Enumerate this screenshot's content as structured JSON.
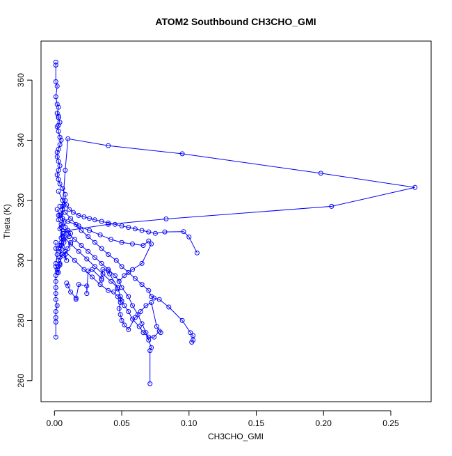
{
  "chart_data": {
    "type": "line",
    "title": "ATOM2 Southbound CH3CHO_GMI",
    "xlabel": "CH3CHO_GMI",
    "ylabel": "Theta (K)",
    "xlim": [
      -0.01,
      0.28
    ],
    "ylim": [
      253,
      373
    ],
    "x_ticks": [
      0.0,
      0.05,
      0.1,
      0.15,
      0.2,
      0.25
    ],
    "x_tick_labels": [
      "0.00",
      "0.05",
      "0.10",
      "0.15",
      "0.20",
      "0.25"
    ],
    "y_ticks": [
      260,
      280,
      300,
      320,
      340,
      360
    ],
    "y_tick_labels": [
      "260",
      "280",
      "300",
      "320",
      "340",
      "360"
    ],
    "grid": false,
    "legend": "none",
    "marker": "open-circle",
    "color": "#0000ff",
    "series": [
      {
        "x": [
          0.001,
          0.001,
          0.001,
          0.002,
          0.001,
          0.002,
          0.003,
          0.002,
          0.003,
          0.003,
          0.004,
          0.003,
          0.002,
          0.003,
          0.004,
          0.005,
          0.004,
          0.003,
          0.002,
          0.002,
          0.003,
          0.004,
          0.003,
          0.002,
          0.003,
          0.004,
          0.006,
          0.008,
          0.008,
          0.007,
          0.006,
          0.005,
          0.006,
          0.007,
          0.008,
          0.01,
          0.012,
          0.011,
          0.008,
          0.007,
          0.005,
          0.004,
          0.003,
          0.004,
          0.005,
          0.004,
          0.003,
          0.004,
          0.003,
          0.002,
          0.003,
          0.004,
          0.005,
          0.006,
          0.008,
          0.01,
          0.04,
          0.095,
          0.198,
          0.268,
          0.206,
          0.083,
          0.04,
          0.01,
          0.007,
          0.006
        ],
        "y": [
          366.0,
          365.0,
          359.5,
          358.0,
          354.5,
          352.0,
          351.0,
          349.0,
          348.0,
          347.5,
          346.0,
          345.0,
          344.5,
          343.0,
          341.0,
          340.0,
          338.5,
          337.0,
          336.0,
          334.5,
          333.0,
          331.5,
          330.0,
          328.5,
          327.0,
          325.5,
          324.0,
          322.0,
          320.0,
          318.5,
          317.0,
          315.5,
          314.0,
          312.5,
          311.0,
          310.0,
          309.0,
          308.0,
          307.5,
          307.0,
          306.0,
          305.0,
          304.0,
          303.0,
          302.0,
          301.0,
          300.0,
          299.0,
          298.0,
          297.0,
          296.0,
          298.5,
          305.0,
          318.0,
          330.0,
          340.5,
          338.2,
          335.5,
          329.0,
          324.3,
          318.0,
          313.8,
          312.0,
          310.0,
          309.0,
          308.0
        ]
      },
      {
        "x": [
          0.001,
          0.001,
          0.002,
          0.001,
          0.001,
          0.002,
          0.001,
          0.001,
          0.001,
          0.001,
          0.001,
          0.002,
          0.001,
          0.001,
          0.001,
          0.001
        ],
        "y": [
          306.0,
          304.0,
          302.0,
          299.0,
          298.0,
          296.0,
          295.0,
          293.0,
          291.0,
          289.0,
          287.0,
          285.0,
          283.0,
          281.0,
          279.5,
          274.5
        ]
      },
      {
        "x": [
          0.003,
          0.006,
          0.009,
          0.011,
          0.014,
          0.018,
          0.022,
          0.026,
          0.03,
          0.035,
          0.04,
          0.045,
          0.05,
          0.055,
          0.06,
          0.065,
          0.07,
          0.075,
          0.082,
          0.096,
          0.1,
          0.106
        ],
        "y": [
          323.0,
          320.0,
          318.5,
          317.0,
          316.0,
          315.0,
          314.5,
          314.0,
          313.5,
          313.0,
          312.5,
          312.0,
          311.5,
          311.0,
          310.5,
          310.0,
          309.5,
          309.0,
          309.5,
          309.6,
          307.8,
          302.5
        ]
      },
      {
        "x": [
          0.004,
          0.008,
          0.012,
          0.016,
          0.02,
          0.025,
          0.03,
          0.035,
          0.04,
          0.046,
          0.05,
          0.055,
          0.06,
          0.065,
          0.07,
          0.072,
          0.074,
          0.078,
          0.085,
          0.095,
          0.101,
          0.103,
          0.103,
          0.102
        ],
        "y": [
          318.0,
          316.0,
          314.0,
          312.0,
          310.0,
          308.0,
          306.0,
          304.0,
          302.0,
          300.0,
          298.0,
          296.0,
          294.0,
          292.0,
          290.0,
          288.0,
          287.5,
          287.0,
          284.5,
          280.0,
          276.0,
          275.0,
          273.5,
          272.8
        ]
      },
      {
        "x": [
          0.005,
          0.01,
          0.015,
          0.02,
          0.025,
          0.03,
          0.035,
          0.04,
          0.045,
          0.048,
          0.05,
          0.055,
          0.058,
          0.062,
          0.065,
          0.068,
          0.07,
          0.072,
          0.071,
          0.071
        ],
        "y": [
          311.0,
          309.0,
          307.0,
          305.0,
          303.0,
          301.0,
          299.0,
          297.0,
          295.0,
          293.0,
          291.0,
          288.0,
          285.0,
          282.0,
          279.0,
          276.0,
          273.5,
          271.0,
          270.0,
          259.0
        ]
      },
      {
        "x": [
          0.006,
          0.012,
          0.018,
          0.024,
          0.03,
          0.036,
          0.042,
          0.047,
          0.049,
          0.049,
          0.048,
          0.049,
          0.05,
          0.052,
          0.055,
          0.06,
          0.064,
          0.068,
          0.072,
          0.076,
          0.079
        ],
        "y": [
          308.0,
          305.5,
          303.0,
          300.5,
          298.0,
          295.5,
          293.0,
          291.0,
          288.0,
          286.0,
          284.0,
          282.0,
          280.0,
          278.5,
          277.0,
          281.0,
          283.0,
          285.0,
          286.0,
          278.0,
          276.0
        ]
      },
      {
        "x": [
          0.008,
          0.015,
          0.022,
          0.028,
          0.034,
          0.04,
          0.044,
          0.047,
          0.049,
          0.05,
          0.052,
          0.055,
          0.058,
          0.063,
          0.066,
          0.07,
          0.074,
          0.078
        ],
        "y": [
          303.0,
          300.0,
          297.0,
          294.5,
          292.0,
          290.0,
          289.5,
          288.0,
          287.0,
          286.5,
          285.0,
          283.0,
          280.5,
          278.0,
          276.0,
          274.5,
          274.5,
          276.5
        ]
      },
      {
        "x": [
          0.009,
          0.01,
          0.012,
          0.016,
          0.016,
          0.018,
          0.024,
          0.024,
          0.025,
          0.028,
          0.035,
          0.035,
          0.036,
          0.04,
          0.041,
          0.047,
          0.047
        ],
        "y": [
          292.5,
          291.5,
          289.5,
          287.5,
          287.0,
          292.0,
          291.5,
          289.0,
          296.5,
          297.0,
          294.0,
          293.5,
          297.0,
          296.5,
          295.5,
          291.0,
          290.5
        ]
      },
      {
        "x": [
          0.003,
          0.01,
          0.018,
          0.026,
          0.034,
          0.042,
          0.05,
          0.058,
          0.066,
          0.07,
          0.072,
          0.065,
          0.058,
          0.052,
          0.048
        ],
        "y": [
          315.0,
          313.0,
          311.5,
          310.0,
          308.5,
          307.0,
          306.0,
          305.5,
          305.0,
          306.5,
          305.5,
          299.0,
          297.0,
          295.0,
          293.0
        ]
      },
      {
        "x": [
          0.002,
          0.004,
          0.003,
          0.005,
          0.004,
          0.006,
          0.005,
          0.007,
          0.006,
          0.008,
          0.007,
          0.009,
          0.008,
          0.01,
          0.012
        ],
        "y": [
          317.0,
          315.0,
          313.5,
          312.0,
          310.5,
          309.0,
          307.5,
          306.0,
          304.5,
          303.0,
          301.5,
          300.0,
          302.0,
          304.0,
          306.0
        ]
      }
    ]
  }
}
